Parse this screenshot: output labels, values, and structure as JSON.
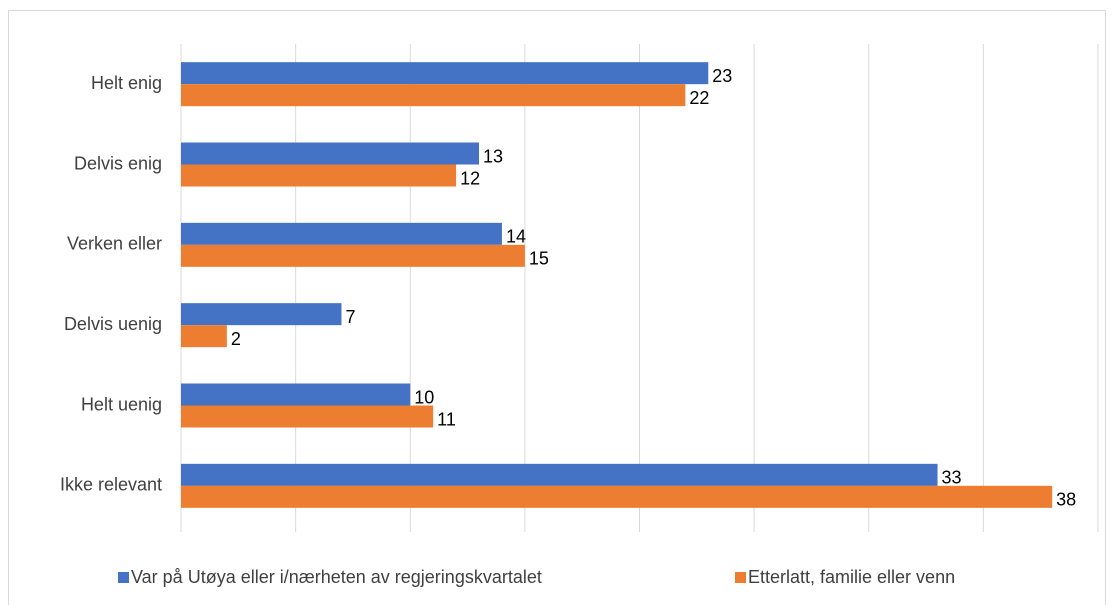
{
  "chart_data": {
    "type": "hbar",
    "categories": [
      "Helt enig",
      "Delvis enig",
      "Verken eller",
      "Delvis uenig",
      "Helt uenig",
      "Ikke relevant"
    ],
    "series": [
      {
        "name": "Var på Utøya eller i/nærheten av regjeringskvartalet",
        "color": "#4472c4",
        "values": [
          23,
          13,
          14,
          7,
          10,
          33
        ]
      },
      {
        "name": "Etterlatt, familie eller venn",
        "color": "#ed7d31",
        "values": [
          22,
          12,
          15,
          2,
          11,
          38
        ]
      }
    ],
    "xlim": [
      0,
      40
    ],
    "xticks": [
      0,
      5,
      10,
      15,
      20,
      25,
      30,
      35,
      40
    ],
    "grid": true,
    "legend": "bottom"
  }
}
